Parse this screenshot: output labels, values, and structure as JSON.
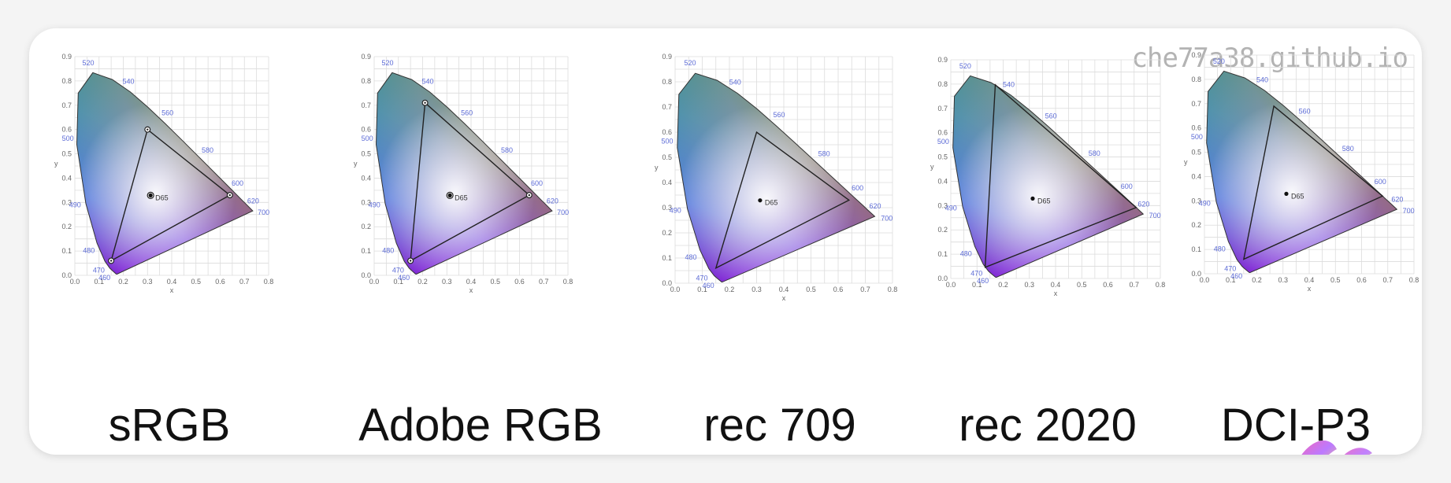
{
  "watermark": "che77a38.github.io",
  "common": {
    "wavelength_labels": [
      "460",
      "470",
      "480",
      "490",
      "500",
      "520",
      "540",
      "560",
      "580",
      "600",
      "620",
      "700"
    ],
    "x_ticks": [
      "0.0",
      "0.1",
      "0.2",
      "0.3",
      "0.4",
      "0.5",
      "0.6",
      "0.7",
      "0.8"
    ],
    "y_ticks": [
      "0.0",
      "0.1",
      "0.2",
      "0.3",
      "0.4",
      "0.5",
      "0.6",
      "0.7",
      "0.8",
      "0.9"
    ],
    "xlabel": "x",
    "ylabel": "y",
    "whitepoint_label": "D65"
  },
  "gamuts": [
    {
      "name": "sRGB",
      "red": [
        0.64,
        0.33
      ],
      "green": [
        0.3,
        0.6
      ],
      "blue": [
        0.15,
        0.06
      ],
      "white": [
        0.3127,
        0.329
      ],
      "markers": true
    },
    {
      "name": "Adobe RGB",
      "red": [
        0.64,
        0.33
      ],
      "green": [
        0.21,
        0.71
      ],
      "blue": [
        0.15,
        0.06
      ],
      "white": [
        0.3127,
        0.329
      ],
      "markers": true
    },
    {
      "name": "rec 709",
      "red": [
        0.64,
        0.33
      ],
      "green": [
        0.3,
        0.6
      ],
      "blue": [
        0.15,
        0.06
      ],
      "white": [
        0.3127,
        0.329
      ],
      "markers": false
    },
    {
      "name": "rec 2020",
      "red": [
        0.708,
        0.292
      ],
      "green": [
        0.17,
        0.797
      ],
      "blue": [
        0.131,
        0.046
      ],
      "white": [
        0.3127,
        0.329
      ],
      "markers": false
    },
    {
      "name": "DCI-P3",
      "red": [
        0.68,
        0.32
      ],
      "green": [
        0.265,
        0.69
      ],
      "blue": [
        0.15,
        0.06
      ],
      "white": [
        0.3127,
        0.329
      ],
      "markers": false
    }
  ]
}
